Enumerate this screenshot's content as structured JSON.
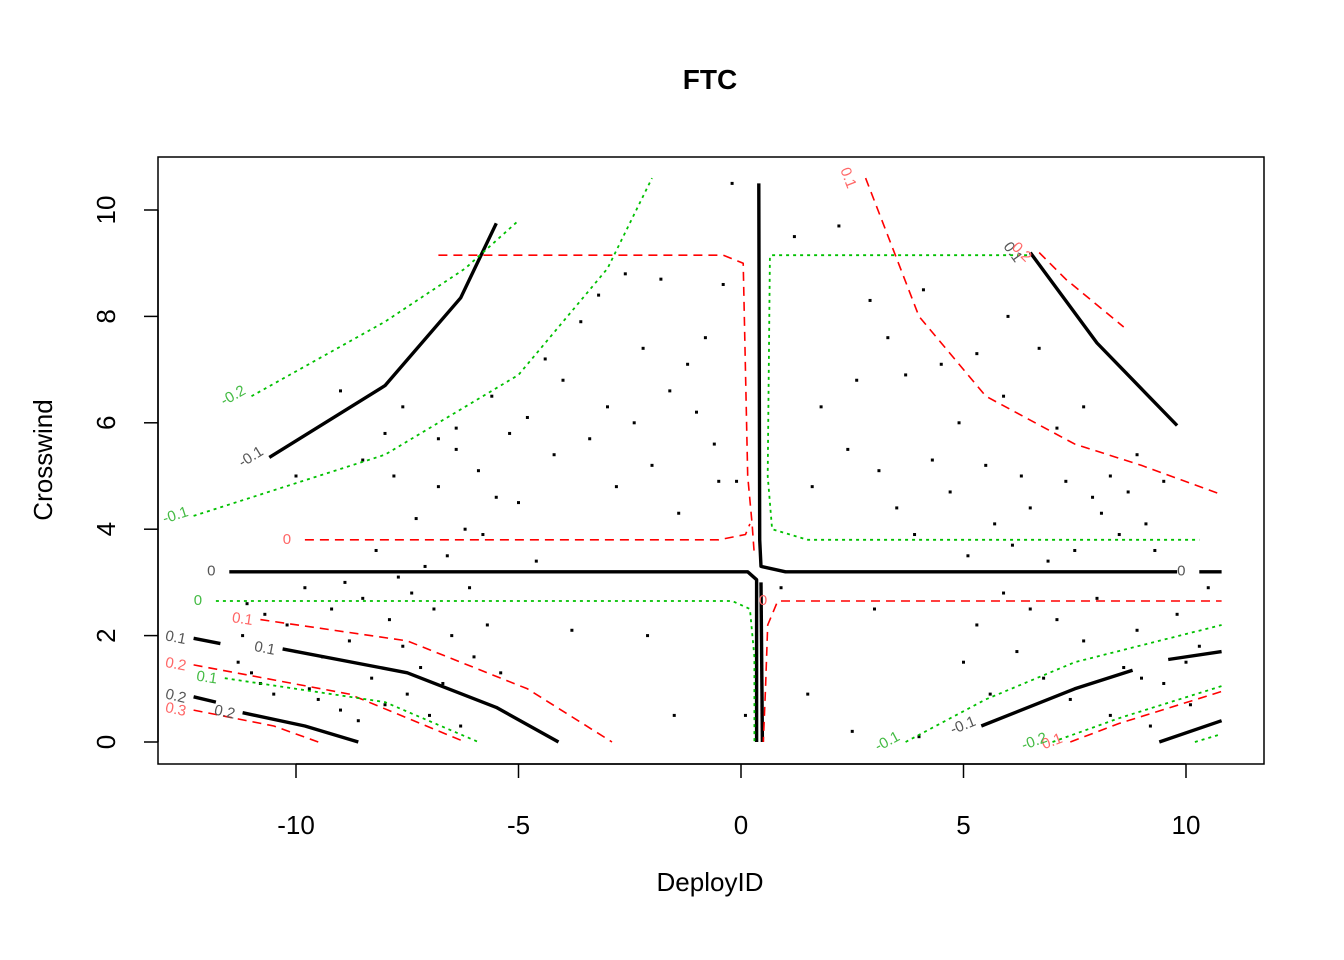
{
  "chart_data": {
    "type": "contour",
    "title": "FTC",
    "xlabel": "DeployID",
    "ylabel": "Crosswind",
    "xlim": [
      -10.5,
      10.5
    ],
    "ylim": [
      -0.3,
      10.7
    ],
    "xticks": [
      -10,
      -5,
      0,
      5,
      10
    ],
    "yticks": [
      0,
      2,
      4,
      6,
      8,
      10
    ],
    "x_tick_labels": [
      "-10",
      "-5",
      "0",
      "5",
      "10"
    ],
    "y_tick_labels": [
      "0",
      "2",
      "4",
      "6",
      "8",
      "10"
    ],
    "grid": false,
    "colors": {
      "estimate": "#000000",
      "upper": "#ff0000",
      "lower": "#00c000"
    },
    "series": [
      {
        "style": "estimate",
        "lines": [
          {
            "label": "0",
            "points": [
              [
                -11.5,
                3.2
              ],
              [
                0.15,
                3.2
              ],
              [
                0.35,
                3.05
              ],
              [
                0.35,
                0
              ]
            ]
          },
          {
            "label": "",
            "points": [
              [
                0.4,
                10.5
              ],
              [
                0.42,
                3.8
              ],
              [
                0.45,
                3.3
              ],
              [
                1.0,
                3.2
              ],
              [
                9.8,
                3.2
              ]
            ]
          },
          {
            "label": "",
            "points": [
              [
                0.45,
                3.0
              ],
              [
                0.48,
                0
              ]
            ]
          },
          {
            "label": "0",
            "points": [
              [
                10.3,
                3.2
              ],
              [
                10.8,
                3.2
              ]
            ]
          },
          {
            "label": "-0.1",
            "points": [
              [
                -10.6,
                5.35
              ],
              [
                -8.0,
                6.7
              ],
              [
                -6.3,
                8.35
              ],
              [
                -5.5,
                9.75
              ]
            ]
          },
          {
            "label": "0.1",
            "points": [
              [
                -10.3,
                1.75
              ],
              [
                -7.5,
                1.3
              ],
              [
                -5.5,
                0.65
              ],
              [
                -4.1,
                0
              ]
            ]
          },
          {
            "label": "0.1",
            "points": [
              [
                -12.3,
                1.95
              ],
              [
                -11.7,
                1.85
              ]
            ]
          },
          {
            "label": "0.2",
            "points": [
              [
                -11.2,
                0.55
              ],
              [
                -9.8,
                0.3
              ],
              [
                -8.6,
                0
              ]
            ]
          },
          {
            "label": "0.2",
            "points": [
              [
                -12.3,
                0.85
              ],
              [
                -11.8,
                0.75
              ]
            ]
          },
          {
            "label": "0.1",
            "points": [
              [
                6.5,
                9.2
              ],
              [
                8.0,
                7.5
              ],
              [
                9.8,
                5.95
              ]
            ]
          },
          {
            "label": "-0.1",
            "points": [
              [
                5.4,
                0.3
              ],
              [
                7.5,
                1.0
              ],
              [
                8.8,
                1.35
              ]
            ]
          },
          {
            "label": "",
            "points": [
              [
                9.6,
                1.55
              ],
              [
                10.8,
                1.7
              ]
            ]
          },
          {
            "label": "",
            "points": [
              [
                9.4,
                0
              ],
              [
                10.8,
                0.4
              ]
            ]
          }
        ]
      },
      {
        "style": "upper",
        "lines": [
          {
            "label": "",
            "points": [
              [
                -6.8,
                9.15
              ],
              [
                -0.4,
                9.15
              ],
              [
                0.05,
                9.0
              ],
              [
                0.15,
                5.0
              ],
              [
                0.25,
                4.1
              ],
              [
                0.3,
                3.5
              ]
            ]
          },
          {
            "label": "0",
            "points": [
              [
                -9.8,
                3.8
              ],
              [
                -0.5,
                3.8
              ],
              [
                0.1,
                3.9
              ],
              [
                0.2,
                4.1
              ]
            ]
          },
          {
            "label": "0",
            "points": [
              [
                0.9,
                2.65
              ],
              [
                10.8,
                2.65
              ]
            ]
          },
          {
            "label": "",
            "points": [
              [
                0.8,
                2.6
              ],
              [
                0.6,
                2.2
              ],
              [
                0.55,
                1.0
              ],
              [
                0.5,
                0
              ]
            ]
          },
          {
            "label": "0.1",
            "points": [
              [
                -10.8,
                2.3
              ],
              [
                -7.5,
                1.9
              ],
              [
                -4.8,
                1.0
              ],
              [
                -2.9,
                0
              ]
            ]
          },
          {
            "label": "0.2",
            "points": [
              [
                -12.3,
                1.45
              ],
              [
                -8.8,
                0.9
              ],
              [
                -6.2,
                0
              ]
            ]
          },
          {
            "label": "0.3",
            "points": [
              [
                -12.3,
                0.6
              ],
              [
                -10.5,
                0.3
              ],
              [
                -9.5,
                0
              ]
            ]
          },
          {
            "label": "0.1",
            "points": [
              [
                2.8,
                10.6
              ],
              [
                4.0,
                8.0
              ],
              [
                5.5,
                6.5
              ],
              [
                7.5,
                5.6
              ],
              [
                9.0,
                5.2
              ],
              [
                10.8,
                4.65
              ]
            ]
          },
          {
            "label": "0.2",
            "points": [
              [
                6.7,
                9.2
              ],
              [
                7.3,
                8.7
              ],
              [
                8.6,
                7.8
              ]
            ]
          },
          {
            "label": "0.1",
            "points": [
              [
                7.4,
                0
              ],
              [
                8.5,
                0.35
              ],
              [
                10.8,
                0.95
              ]
            ]
          }
        ]
      },
      {
        "style": "lower",
        "lines": [
          {
            "label": "-0.2",
            "points": [
              [
                -11.0,
                6.5
              ],
              [
                -8.0,
                7.9
              ],
              [
                -6.2,
                8.9
              ],
              [
                -5.0,
                9.8
              ]
            ]
          },
          {
            "label": "-0.1",
            "points": [
              [
                -12.3,
                4.25
              ],
              [
                -8.0,
                5.4
              ],
              [
                -5.0,
                6.9
              ],
              [
                -3.0,
                8.9
              ],
              [
                -2.0,
                10.6
              ]
            ]
          },
          {
            "label": "0",
            "points": [
              [
                -11.8,
                2.65
              ],
              [
                -0.2,
                2.65
              ],
              [
                0.2,
                2.5
              ],
              [
                0.3,
                1.6
              ],
              [
                0.3,
                0
              ]
            ]
          },
          {
            "label": "",
            "points": [
              [
                0.7,
                9.15
              ],
              [
                6.5,
                9.15
              ]
            ]
          },
          {
            "label": "",
            "points": [
              [
                0.65,
                9.1
              ],
              [
                0.6,
                5.0
              ],
              [
                0.7,
                4.0
              ],
              [
                1.5,
                3.8
              ],
              [
                10.3,
                3.8
              ]
            ]
          },
          {
            "label": "0.1",
            "points": [
              [
                -11.6,
                1.2
              ],
              [
                -8.0,
                0.75
              ],
              [
                -5.9,
                0
              ]
            ]
          },
          {
            "label": "-0.1",
            "points": [
              [
                3.7,
                0
              ],
              [
                5.5,
                0.8
              ],
              [
                7.5,
                1.5
              ],
              [
                10.8,
                2.2
              ]
            ]
          },
          {
            "label": "-0.2",
            "points": [
              [
                7.0,
                0
              ],
              [
                8.5,
                0.45
              ],
              [
                10.8,
                1.05
              ]
            ]
          },
          {
            "label": "",
            "points": [
              [
                10.2,
                0
              ],
              [
                10.8,
                0.15
              ]
            ]
          }
        ]
      }
    ],
    "points": [
      [
        -11.3,
        1.5
      ],
      [
        -11.2,
        2.0
      ],
      [
        -11.1,
        2.6
      ],
      [
        -11.0,
        1.3
      ],
      [
        -10.8,
        1.1
      ],
      [
        -10.7,
        2.4
      ],
      [
        -10.5,
        0.9
      ],
      [
        -10.2,
        2.2
      ],
      [
        -10.0,
        1.7
      ],
      [
        -9.8,
        2.9
      ],
      [
        -9.7,
        1.0
      ],
      [
        -9.5,
        0.8
      ],
      [
        -9.4,
        1.6
      ],
      [
        -9.2,
        2.5
      ],
      [
        -9.0,
        0.6
      ],
      [
        -8.9,
        3.0
      ],
      [
        -8.8,
        1.9
      ],
      [
        -8.6,
        0.4
      ],
      [
        -8.5,
        2.7
      ],
      [
        -8.3,
        1.2
      ],
      [
        -8.2,
        3.6
      ],
      [
        -8.0,
        0.7
      ],
      [
        -7.9,
        2.3
      ],
      [
        -7.8,
        5.0
      ],
      [
        -7.7,
        3.1
      ],
      [
        -7.6,
        1.8
      ],
      [
        -7.5,
        0.9
      ],
      [
        -7.4,
        2.8
      ],
      [
        -7.3,
        4.2
      ],
      [
        -7.2,
        1.4
      ],
      [
        -7.1,
        3.3
      ],
      [
        -7.0,
        0.5
      ],
      [
        -6.9,
        2.5
      ],
      [
        -6.8,
        4.8
      ],
      [
        -6.7,
        1.1
      ],
      [
        -6.6,
        3.5
      ],
      [
        -6.5,
        2.0
      ],
      [
        -6.4,
        5.5
      ],
      [
        -6.3,
        0.3
      ],
      [
        -6.2,
        4.0
      ],
      [
        -6.1,
        2.9
      ],
      [
        -6.0,
        1.6
      ],
      [
        -5.9,
        5.1
      ],
      [
        -5.8,
        3.9
      ],
      [
        -5.7,
        2.2
      ],
      [
        -5.6,
        6.5
      ],
      [
        -5.5,
        4.6
      ],
      [
        -5.4,
        1.3
      ],
      [
        -5.2,
        5.8
      ],
      [
        -5.0,
        4.5
      ],
      [
        -4.8,
        6.1
      ],
      [
        -4.6,
        3.4
      ],
      [
        -4.4,
        7.2
      ],
      [
        -4.2,
        5.4
      ],
      [
        -4.0,
        6.8
      ],
      [
        -3.8,
        2.1
      ],
      [
        -3.6,
        7.9
      ],
      [
        -3.4,
        5.7
      ],
      [
        -3.2,
        8.4
      ],
      [
        -3.0,
        6.3
      ],
      [
        -2.8,
        4.8
      ],
      [
        -2.6,
        8.8
      ],
      [
        -2.4,
        6.0
      ],
      [
        -2.2,
        7.4
      ],
      [
        -2.0,
        5.2
      ],
      [
        -1.8,
        8.7
      ],
      [
        -1.6,
        6.6
      ],
      [
        -1.4,
        4.3
      ],
      [
        -1.2,
        7.1
      ],
      [
        -1.0,
        6.2
      ],
      [
        -0.8,
        7.6
      ],
      [
        -0.6,
        5.6
      ],
      [
        -0.4,
        8.6
      ],
      [
        -0.2,
        10.5
      ],
      [
        -0.5,
        4.9
      ],
      [
        -1.5,
        0.5
      ],
      [
        -2.1,
        2.0
      ],
      [
        -10.0,
        5.0
      ],
      [
        -9.0,
        6.6
      ],
      [
        -8.5,
        5.3
      ],
      [
        -8.0,
        5.8
      ],
      [
        -7.6,
        6.3
      ],
      [
        -6.8,
        5.7
      ],
      [
        -6.4,
        5.9
      ],
      [
        1.2,
        9.5
      ],
      [
        1.6,
        4.8
      ],
      [
        1.8,
        6.3
      ],
      [
        2.2,
        9.7
      ],
      [
        2.4,
        5.5
      ],
      [
        2.6,
        6.8
      ],
      [
        2.9,
        8.3
      ],
      [
        3.1,
        5.1
      ],
      [
        3.3,
        7.6
      ],
      [
        3.5,
        4.4
      ],
      [
        3.7,
        6.9
      ],
      [
        3.9,
        3.9
      ],
      [
        4.1,
        8.5
      ],
      [
        4.3,
        5.3
      ],
      [
        4.5,
        7.1
      ],
      [
        4.7,
        4.7
      ],
      [
        4.9,
        6.0
      ],
      [
        5.1,
        3.5
      ],
      [
        5.3,
        7.3
      ],
      [
        5.5,
        5.2
      ],
      [
        5.7,
        4.1
      ],
      [
        5.9,
        6.5
      ],
      [
        6.1,
        3.7
      ],
      [
        6.3,
        5.0
      ],
      [
        6.5,
        4.4
      ],
      [
        6.7,
        7.4
      ],
      [
        6.9,
        3.4
      ],
      [
        7.1,
        5.9
      ],
      [
        7.3,
        4.9
      ],
      [
        7.5,
        3.6
      ],
      [
        7.7,
        6.3
      ],
      [
        7.9,
        4.6
      ],
      [
        8.1,
        4.3
      ],
      [
        8.3,
        5.0
      ],
      [
        8.5,
        3.9
      ],
      [
        8.7,
        4.7
      ],
      [
        8.9,
        5.4
      ],
      [
        9.1,
        4.1
      ],
      [
        9.3,
        3.6
      ],
      [
        9.5,
        4.9
      ],
      [
        5.0,
        1.5
      ],
      [
        5.3,
        2.2
      ],
      [
        5.6,
        0.9
      ],
      [
        5.9,
        2.8
      ],
      [
        6.2,
        1.7
      ],
      [
        6.5,
        2.5
      ],
      [
        6.8,
        1.2
      ],
      [
        7.1,
        2.3
      ],
      [
        7.4,
        0.8
      ],
      [
        7.7,
        1.9
      ],
      [
        8.0,
        2.7
      ],
      [
        8.3,
        0.5
      ],
      [
        8.6,
        1.4
      ],
      [
        8.9,
        2.1
      ],
      [
        9.2,
        0.3
      ],
      [
        9.5,
        1.1
      ],
      [
        9.8,
        2.4
      ],
      [
        10.1,
        0.7
      ],
      [
        10.3,
        1.8
      ],
      [
        10.5,
        2.9
      ],
      [
        1.5,
        0.9
      ],
      [
        2.5,
        0.2
      ],
      [
        3.0,
        2.5
      ],
      [
        4.0,
        0.1
      ],
      [
        0.9,
        2.9
      ],
      [
        -0.1,
        4.9
      ],
      [
        0.1,
        0.5
      ],
      [
        6.0,
        8.0
      ],
      [
        9.0,
        1.2
      ],
      [
        10.0,
        1.5
      ]
    ]
  }
}
